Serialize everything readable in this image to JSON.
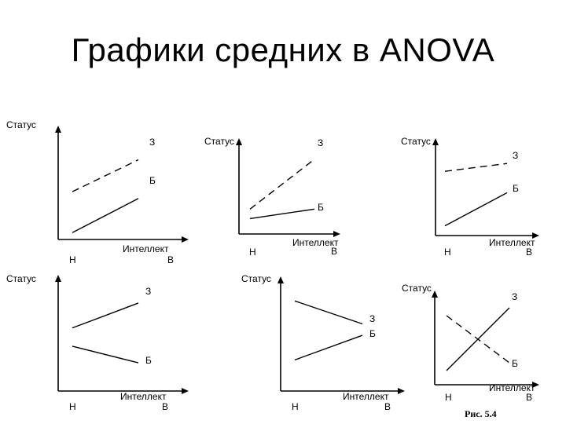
{
  "page": {
    "title": "Графики средних в ANOVA",
    "caption": "Рис. 5.4"
  },
  "chart_data": [
    {
      "type": "line",
      "ylabel": "Статус",
      "xlabel": "Интеллект",
      "x": [
        "Н",
        "В"
      ],
      "series": [
        {
          "name": "З",
          "values": [
            4.2,
            7.0
          ],
          "style": "dashed"
        },
        {
          "name": "Б",
          "values": [
            0.6,
            3.6
          ],
          "style": "solid"
        }
      ]
    },
    {
      "type": "line",
      "ylabel": "Статус",
      "xlabel": "Интеллект",
      "x": [
        "Н",
        "В"
      ],
      "series": [
        {
          "name": "З",
          "values": [
            2.6,
            7.8
          ],
          "style": "dashed"
        },
        {
          "name": "Б",
          "values": [
            1.6,
            2.6
          ],
          "style": "solid"
        }
      ]
    },
    {
      "type": "line",
      "ylabel": "Статус",
      "xlabel": "Интеллект",
      "x": [
        "Н",
        "В"
      ],
      "series": [
        {
          "name": "З",
          "values": [
            6.6,
            7.4
          ],
          "style": "dashed"
        },
        {
          "name": "Б",
          "values": [
            1.0,
            4.4
          ],
          "style": "solid"
        }
      ]
    },
    {
      "type": "line",
      "ylabel": "Статус",
      "xlabel": "Интеллект",
      "x": [
        "Н",
        "В"
      ],
      "series": [
        {
          "name": "З",
          "values": [
            7.6,
            10.6
          ],
          "style": "solid"
        },
        {
          "name": "Б",
          "values": [
            5.4,
            3.4
          ],
          "style": "solid"
        }
      ]
    },
    {
      "type": "line",
      "ylabel": "Статус",
      "xlabel": "Интеллект",
      "x": [
        "Н",
        "В"
      ],
      "series": [
        {
          "name": "З",
          "values": [
            11.0,
            8.2
          ],
          "style": "solid"
        },
        {
          "name": "Б",
          "values": [
            3.8,
            6.8
          ],
          "style": "solid"
        }
      ]
    },
    {
      "type": "line",
      "ylabel": "Статус",
      "xlabel": "Интеллект",
      "x": [
        "Н",
        "В"
      ],
      "series": [
        {
          "name": "З",
          "values": [
            1.8,
            9.8
          ],
          "style": "solid"
        },
        {
          "name": "Б",
          "values": [
            8.8,
            2.8
          ],
          "style": "dashed"
        }
      ]
    }
  ]
}
